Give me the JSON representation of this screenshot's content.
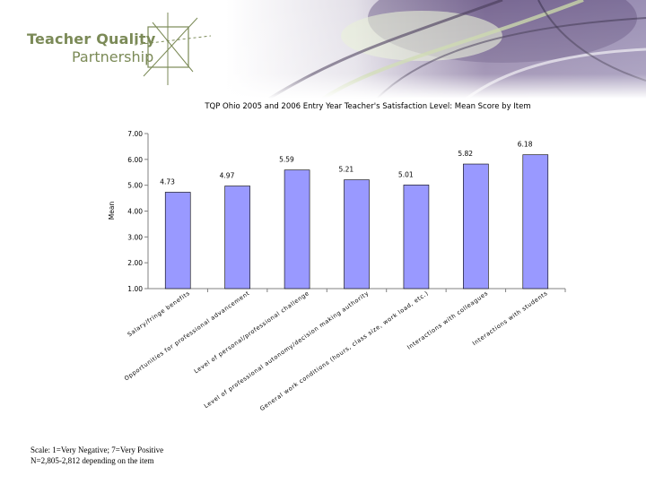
{
  "logo": {
    "line1": "Teacher Quality",
    "line2": "Partnership",
    "brand_color": "#7b8a57"
  },
  "chart_data": {
    "type": "bar",
    "title": "TQP Ohio 2005 and 2006 Entry Year Teacher's Satisfaction Level: Mean Score by Item",
    "xlabel": "",
    "ylabel": "Mean",
    "ylim": [
      1,
      7
    ],
    "yticks": [
      "1.00",
      "2.00",
      "3.00",
      "4.00",
      "5.00",
      "6.00",
      "7.00"
    ],
    "categories": [
      "Salary/fringe benefits",
      "Opportunities for professional advancement",
      "Level of personal/professional challenge",
      "Level of professional autonomy/decision making authority",
      "General work conditions (hours, class size, work load, etc.)",
      "Interactions with colleagues",
      "Interactions with students"
    ],
    "values": [
      4.73,
      4.97,
      5.59,
      5.21,
      5.01,
      5.82,
      6.18
    ],
    "value_labels": [
      "4.73",
      "4.97",
      "5.59",
      "5.21",
      "5.01",
      "5.82",
      "6.18"
    ],
    "bar_color": "#9999ff",
    "grid": false,
    "legend": "none"
  },
  "footnote": {
    "line1": "Scale: 1=Very Negative; 7=Very Positive",
    "line2": "N=2,805-2,812 depending on the item"
  }
}
